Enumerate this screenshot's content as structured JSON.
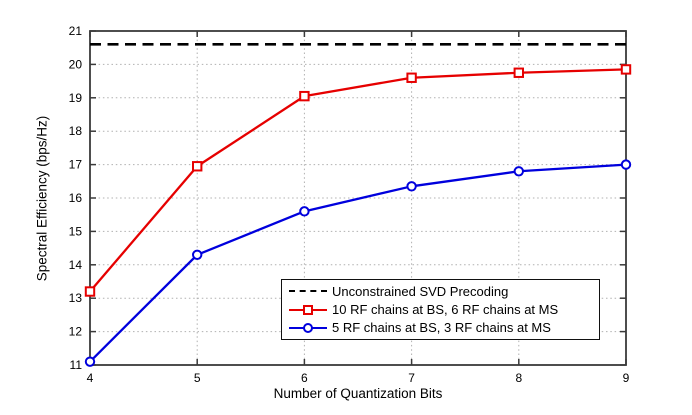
{
  "figure": {
    "background": "#ffffff"
  },
  "chart_data": {
    "type": "line",
    "title": "",
    "xlabel": "Number of Quantization Bits",
    "ylabel": "Spectral Efficiency (bps/Hz)",
    "xlim": [
      4,
      9
    ],
    "ylim": [
      11,
      21
    ],
    "x_ticks": [
      4,
      5,
      6,
      7,
      8,
      9
    ],
    "y_ticks": [
      11,
      12,
      13,
      14,
      15,
      16,
      17,
      18,
      19,
      20,
      21
    ],
    "grid": "dotted",
    "grid_color": "#b0b0b0",
    "frame_color": "#3a3a3a",
    "x": [
      4,
      5,
      6,
      7,
      8,
      9
    ],
    "series": [
      {
        "name": "Unconstrained SVD Precoding",
        "type": "hline",
        "value": 20.6,
        "color": "#000000",
        "line_style": "dashed",
        "marker": "none"
      },
      {
        "name": "10 RF chains at BS, 6 RF chains at MS",
        "type": "line",
        "values": [
          13.2,
          16.95,
          19.05,
          19.6,
          19.75,
          19.85
        ],
        "color": "#e60000",
        "line_style": "solid",
        "marker": "square"
      },
      {
        "name": "5 RF chains at BS, 3 RF chains at MS",
        "type": "line",
        "values": [
          11.1,
          14.3,
          15.6,
          16.35,
          16.8,
          17.0
        ],
        "color": "#0000dd",
        "line_style": "solid",
        "marker": "circle"
      }
    ],
    "legend": {
      "position": "inside-lower-right",
      "background": "#ffffff",
      "border_color": "#111111"
    }
  }
}
